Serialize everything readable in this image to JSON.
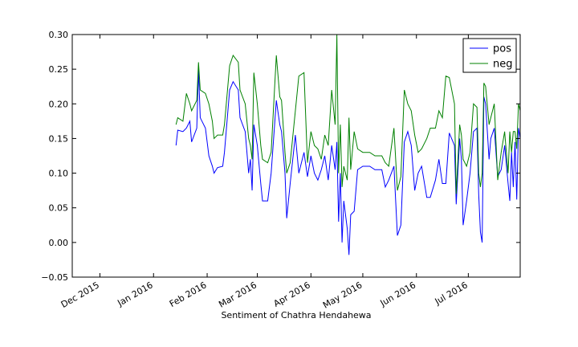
{
  "chart_data": {
    "type": "line",
    "title": "",
    "xlabel": "Sentiment of Chathra Hendahewa",
    "ylabel": "",
    "xlim": [
      "2015-11-15",
      "2016-07-31"
    ],
    "ylim": [
      -0.05,
      0.3
    ],
    "yticks": [
      -0.05,
      0.0,
      0.05,
      0.1,
      0.15,
      0.2,
      0.25,
      0.3
    ],
    "ytick_labels": [
      "−0.05",
      "0.00",
      "0.05",
      "0.10",
      "0.15",
      "0.20",
      "0.25",
      "0.30"
    ],
    "xticks": [
      "2015-12-01",
      "2016-01-01",
      "2016-02-01",
      "2016-03-01",
      "2016-04-01",
      "2016-05-01",
      "2016-06-01",
      "2016-07-01"
    ],
    "xtick_labels": [
      "Dec 2015",
      "Jan 2016",
      "Feb 2016",
      "Mar 2016",
      "Apr 2016",
      "May 2016",
      "Jun 2016",
      "Jul 2016"
    ],
    "grid": false,
    "legend": "top-right",
    "series": [
      {
        "name": "pos",
        "color": "#0000ff",
        "points": [
          [
            "2016-01-14",
            0.14
          ],
          [
            "2016-01-15",
            0.162
          ],
          [
            "2016-01-18",
            0.16
          ],
          [
            "2016-01-20",
            0.165
          ],
          [
            "2016-01-22",
            0.175
          ],
          [
            "2016-01-23",
            0.145
          ],
          [
            "2016-01-26",
            0.165
          ],
          [
            "2016-01-27",
            0.25
          ],
          [
            "2016-01-28",
            0.18
          ],
          [
            "2016-01-31",
            0.165
          ],
          [
            "2016-02-02",
            0.125
          ],
          [
            "2016-02-04",
            0.11
          ],
          [
            "2016-02-05",
            0.1
          ],
          [
            "2016-02-07",
            0.108
          ],
          [
            "2016-02-10",
            0.11
          ],
          [
            "2016-02-11",
            0.13
          ],
          [
            "2016-02-14",
            0.22
          ],
          [
            "2016-02-16",
            0.232
          ],
          [
            "2016-02-19",
            0.22
          ],
          [
            "2016-02-20",
            0.18
          ],
          [
            "2016-02-23",
            0.16
          ],
          [
            "2016-02-25",
            0.1
          ],
          [
            "2016-02-26",
            0.12
          ],
          [
            "2016-02-27",
            0.075
          ],
          [
            "2016-02-28",
            0.17
          ],
          [
            "2016-03-01",
            0.14
          ],
          [
            "2016-03-03",
            0.085
          ],
          [
            "2016-03-04",
            0.06
          ],
          [
            "2016-03-07",
            0.06
          ],
          [
            "2016-03-09",
            0.1
          ],
          [
            "2016-03-12",
            0.205
          ],
          [
            "2016-03-14",
            0.17
          ],
          [
            "2016-03-15",
            0.16
          ],
          [
            "2016-03-17",
            0.1
          ],
          [
            "2016-03-18",
            0.035
          ],
          [
            "2016-03-20",
            0.085
          ],
          [
            "2016-03-23",
            0.155
          ],
          [
            "2016-03-25",
            0.1
          ],
          [
            "2016-03-28",
            0.13
          ],
          [
            "2016-03-30",
            0.095
          ],
          [
            "2016-04-01",
            0.125
          ],
          [
            "2016-04-03",
            0.1
          ],
          [
            "2016-04-05",
            0.09
          ],
          [
            "2016-04-07",
            0.105
          ],
          [
            "2016-04-09",
            0.125
          ],
          [
            "2016-04-11",
            0.09
          ],
          [
            "2016-04-13",
            0.14
          ],
          [
            "2016-04-15",
            0.105
          ],
          [
            "2016-04-16",
            0.145
          ],
          [
            "2016-04-17",
            0.03
          ],
          [
            "2016-04-18",
            0.1
          ],
          [
            "2016-04-19",
            0.0
          ],
          [
            "2016-04-20",
            0.06
          ],
          [
            "2016-04-22",
            0.02
          ],
          [
            "2016-04-23",
            -0.018
          ],
          [
            "2016-04-24",
            0.04
          ],
          [
            "2016-04-26",
            0.045
          ],
          [
            "2016-04-28",
            0.105
          ],
          [
            "2016-05-01",
            0.11
          ],
          [
            "2016-05-05",
            0.11
          ],
          [
            "2016-05-08",
            0.105
          ],
          [
            "2016-05-12",
            0.105
          ],
          [
            "2016-05-14",
            0.08
          ],
          [
            "2016-05-16",
            0.09
          ],
          [
            "2016-05-19",
            0.11
          ],
          [
            "2016-05-21",
            0.01
          ],
          [
            "2016-05-23",
            0.025
          ],
          [
            "2016-05-25",
            0.145
          ],
          [
            "2016-05-27",
            0.16
          ],
          [
            "2016-05-29",
            0.14
          ],
          [
            "2016-05-31",
            0.075
          ],
          [
            "2016-06-02",
            0.1
          ],
          [
            "2016-06-04",
            0.11
          ],
          [
            "2016-06-07",
            0.065
          ],
          [
            "2016-06-09",
            0.065
          ],
          [
            "2016-06-12",
            0.09
          ],
          [
            "2016-06-14",
            0.12
          ],
          [
            "2016-06-16",
            0.085
          ],
          [
            "2016-06-18",
            0.085
          ],
          [
            "2016-06-20",
            0.158
          ],
          [
            "2016-06-23",
            0.14
          ],
          [
            "2016-06-24",
            0.055
          ],
          [
            "2016-06-26",
            0.15
          ],
          [
            "2016-06-27",
            0.12
          ],
          [
            "2016-06-28",
            0.025
          ],
          [
            "2016-06-30",
            0.06
          ],
          [
            "2016-07-02",
            0.1
          ],
          [
            "2016-07-04",
            0.16
          ],
          [
            "2016-07-06",
            0.165
          ],
          [
            "2016-07-07",
            0.07
          ],
          [
            "2016-07-08",
            0.015
          ],
          [
            "2016-07-09",
            0.0
          ],
          [
            "2016-07-10",
            0.21
          ],
          [
            "2016-07-11",
            0.2
          ],
          [
            "2016-07-13",
            0.12
          ],
          [
            "2016-07-14",
            0.15
          ],
          [
            "2016-07-16",
            0.165
          ],
          [
            "2016-07-18",
            0.095
          ],
          [
            "2016-07-20",
            0.105
          ],
          [
            "2016-07-22",
            0.14
          ],
          [
            "2016-07-24",
            0.085
          ],
          [
            "2016-07-25",
            0.06
          ],
          [
            "2016-07-26",
            0.13
          ],
          [
            "2016-07-27",
            0.08
          ],
          [
            "2016-07-28",
            0.145
          ],
          [
            "2016-07-29",
            0.062
          ],
          [
            "2016-07-30",
            0.165
          ],
          [
            "2016-07-31",
            0.15
          ]
        ]
      },
      {
        "name": "neg",
        "color": "#008000",
        "points": [
          [
            "2016-01-14",
            0.17
          ],
          [
            "2016-01-15",
            0.18
          ],
          [
            "2016-01-18",
            0.175
          ],
          [
            "2016-01-20",
            0.215
          ],
          [
            "2016-01-22",
            0.2
          ],
          [
            "2016-01-23",
            0.19
          ],
          [
            "2016-01-26",
            0.205
          ],
          [
            "2016-01-27",
            0.26
          ],
          [
            "2016-01-28",
            0.22
          ],
          [
            "2016-01-31",
            0.215
          ],
          [
            "2016-02-02",
            0.2
          ],
          [
            "2016-02-04",
            0.175
          ],
          [
            "2016-02-05",
            0.15
          ],
          [
            "2016-02-07",
            0.155
          ],
          [
            "2016-02-10",
            0.155
          ],
          [
            "2016-02-11",
            0.17
          ],
          [
            "2016-02-14",
            0.255
          ],
          [
            "2016-02-16",
            0.27
          ],
          [
            "2016-02-19",
            0.26
          ],
          [
            "2016-02-20",
            0.22
          ],
          [
            "2016-02-23",
            0.2
          ],
          [
            "2016-02-25",
            0.15
          ],
          [
            "2016-02-26",
            0.14
          ],
          [
            "2016-02-27",
            0.12
          ],
          [
            "2016-02-28",
            0.245
          ],
          [
            "2016-03-01",
            0.2
          ],
          [
            "2016-03-03",
            0.14
          ],
          [
            "2016-03-04",
            0.12
          ],
          [
            "2016-03-07",
            0.115
          ],
          [
            "2016-03-09",
            0.13
          ],
          [
            "2016-03-12",
            0.27
          ],
          [
            "2016-03-14",
            0.21
          ],
          [
            "2016-03-15",
            0.205
          ],
          [
            "2016-03-17",
            0.13
          ],
          [
            "2016-03-18",
            0.1
          ],
          [
            "2016-03-20",
            0.115
          ],
          [
            "2016-03-23",
            0.19
          ],
          [
            "2016-03-25",
            0.24
          ],
          [
            "2016-03-28",
            0.245
          ],
          [
            "2016-03-30",
            0.115
          ],
          [
            "2016-04-01",
            0.16
          ],
          [
            "2016-04-03",
            0.14
          ],
          [
            "2016-04-05",
            0.135
          ],
          [
            "2016-04-07",
            0.12
          ],
          [
            "2016-04-09",
            0.155
          ],
          [
            "2016-04-11",
            0.14
          ],
          [
            "2016-04-13",
            0.22
          ],
          [
            "2016-04-15",
            0.17
          ],
          [
            "2016-04-16",
            0.3
          ],
          [
            "2016-04-17",
            0.1
          ],
          [
            "2016-04-18",
            0.17
          ],
          [
            "2016-04-19",
            0.08
          ],
          [
            "2016-04-20",
            0.11
          ],
          [
            "2016-04-22",
            0.09
          ],
          [
            "2016-04-23",
            0.18
          ],
          [
            "2016-04-24",
            0.105
          ],
          [
            "2016-04-26",
            0.16
          ],
          [
            "2016-04-28",
            0.135
          ],
          [
            "2016-05-01",
            0.13
          ],
          [
            "2016-05-05",
            0.13
          ],
          [
            "2016-05-08",
            0.125
          ],
          [
            "2016-05-12",
            0.125
          ],
          [
            "2016-05-14",
            0.115
          ],
          [
            "2016-05-16",
            0.11
          ],
          [
            "2016-05-19",
            0.165
          ],
          [
            "2016-05-21",
            0.075
          ],
          [
            "2016-05-23",
            0.095
          ],
          [
            "2016-05-25",
            0.22
          ],
          [
            "2016-05-27",
            0.2
          ],
          [
            "2016-05-29",
            0.19
          ],
          [
            "2016-05-31",
            0.155
          ],
          [
            "2016-06-02",
            0.13
          ],
          [
            "2016-06-04",
            0.135
          ],
          [
            "2016-06-07",
            0.15
          ],
          [
            "2016-06-09",
            0.165
          ],
          [
            "2016-06-12",
            0.165
          ],
          [
            "2016-06-14",
            0.19
          ],
          [
            "2016-06-16",
            0.18
          ],
          [
            "2016-06-18",
            0.24
          ],
          [
            "2016-06-20",
            0.238
          ],
          [
            "2016-06-23",
            0.2
          ],
          [
            "2016-06-24",
            0.07
          ],
          [
            "2016-06-26",
            0.17
          ],
          [
            "2016-06-27",
            0.155
          ],
          [
            "2016-06-28",
            0.12
          ],
          [
            "2016-06-30",
            0.11
          ],
          [
            "2016-07-02",
            0.13
          ],
          [
            "2016-07-04",
            0.2
          ],
          [
            "2016-07-06",
            0.195
          ],
          [
            "2016-07-07",
            0.1
          ],
          [
            "2016-07-08",
            0.08
          ],
          [
            "2016-07-09",
            0.1
          ],
          [
            "2016-07-10",
            0.23
          ],
          [
            "2016-07-11",
            0.225
          ],
          [
            "2016-07-13",
            0.17
          ],
          [
            "2016-07-14",
            0.18
          ],
          [
            "2016-07-16",
            0.2
          ],
          [
            "2016-07-18",
            0.09
          ],
          [
            "2016-07-20",
            0.13
          ],
          [
            "2016-07-22",
            0.16
          ],
          [
            "2016-07-24",
            0.1
          ],
          [
            "2016-07-25",
            0.16
          ],
          [
            "2016-07-26",
            0.13
          ],
          [
            "2016-07-27",
            0.16
          ],
          [
            "2016-07-28",
            0.16
          ],
          [
            "2016-07-29",
            0.135
          ],
          [
            "2016-07-30",
            0.2
          ],
          [
            "2016-07-31",
            0.19
          ]
        ]
      }
    ]
  }
}
